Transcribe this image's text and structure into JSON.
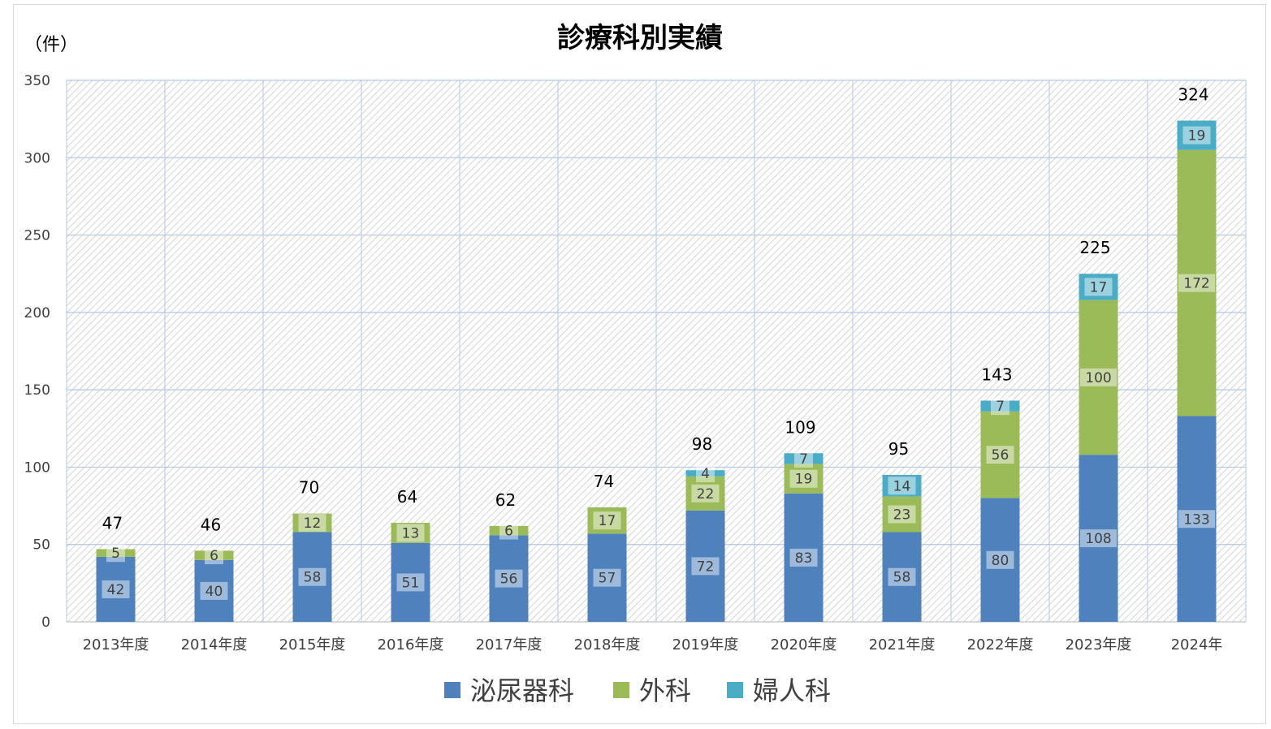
{
  "chart_data": {
    "type": "bar",
    "stacked": true,
    "title": "診療科別実績",
    "ylabel": "（件）",
    "ylim": [
      0,
      350
    ],
    "yticks": [
      0,
      50,
      100,
      150,
      200,
      250,
      300,
      350
    ],
    "grid": true,
    "legend_position": "bottom",
    "categories": [
      "2013年度",
      "2014年度",
      "2015年度",
      "2016年度",
      "2017年度",
      "2018年度",
      "2019年度",
      "2020年度",
      "2021年度",
      "2022年度",
      "2023年度",
      "2024年"
    ],
    "series": [
      {
        "name": "泌尿器科",
        "color": "#4f81bd",
        "values": [
          42,
          40,
          58,
          51,
          56,
          57,
          72,
          83,
          58,
          80,
          108,
          133
        ]
      },
      {
        "name": "外科",
        "color": "#9bbb59",
        "values": [
          5,
          6,
          12,
          13,
          6,
          17,
          22,
          19,
          23,
          56,
          100,
          172
        ]
      },
      {
        "name": "婦人科",
        "color": "#4bacc6",
        "values": [
          0,
          0,
          0,
          0,
          0,
          0,
          4,
          7,
          14,
          7,
          17,
          19
        ]
      }
    ],
    "totals": [
      47,
      46,
      70,
      64,
      62,
      74,
      98,
      109,
      95,
      143,
      225,
      324
    ]
  }
}
